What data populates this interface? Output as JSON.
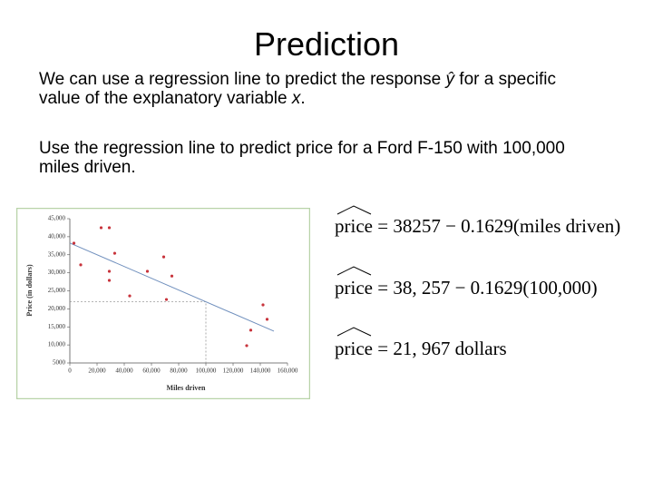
{
  "title": "Prediction",
  "body": [
    [
      "We can use a regression line to predict the response ",
      "ŷ",
      " for a specific value of the explanatory variable ",
      "x",
      "."
    ],
    [
      "Use the regression line to predict price for a Ford F-150 with 100,000 miles driven."
    ]
  ],
  "equations": [
    {
      "lhs": "price",
      "rhs": "= 38257 − 0.1629(miles driven)"
    },
    {
      "lhs": "price",
      "rhs": "= 38, 257 − 0.1629(100,000)"
    },
    {
      "lhs": "price",
      "rhs": "= 21, 967 dollars"
    }
  ],
  "chart_data": {
    "type": "scatter",
    "x_label": "Miles driven",
    "y_label": "Price (in dollars)",
    "x": [
      3000,
      8000,
      23000,
      29000,
      33000,
      29000,
      29000,
      44000,
      57000,
      69000,
      75000,
      71000,
      142000,
      133000,
      145000,
      130000
    ],
    "values": [
      38200,
      32200,
      42500,
      42500,
      35400,
      30400,
      27900,
      23600,
      30400,
      34400,
      29100,
      22600,
      21100,
      14100,
      17100,
      9800
    ],
    "color": "#c8343c",
    "fit_line": {
      "x": [
        0,
        150000
      ],
      "values": [
        38257,
        13822
      ],
      "color": "#6f8fbd"
    },
    "reference_point": {
      "x": 100000,
      "y": 21967
    },
    "xlim": [
      0,
      160000
    ],
    "xticks": [
      0,
      {
        "value": 20000,
        "label": "20,000"
      },
      {
        "value": 40000,
        "label": "40,000"
      },
      {
        "value": 60000,
        "label": "60,000"
      },
      {
        "value": 80000,
        "label": "80,000"
      },
      {
        "value": 100000,
        "label": "100,000"
      },
      {
        "value": 120000,
        "label": "120,000"
      },
      {
        "value": 140000,
        "label": "140,000"
      },
      {
        "value": 160000,
        "label": "160,000"
      }
    ],
    "ylim": [
      5000,
      45000
    ],
    "yticks": [
      5000,
      {
        "value": 10000,
        "label": "10,000"
      },
      {
        "value": 15000,
        "label": "15,000"
      },
      {
        "value": 20000,
        "label": "20,000"
      },
      {
        "value": 25000,
        "label": "25,000"
      },
      {
        "value": 30000,
        "label": "30,000"
      },
      {
        "value": 35000,
        "label": "35,000"
      },
      {
        "value": 40000,
        "label": "40,000"
      },
      {
        "value": 45000,
        "label": "45,000"
      }
    ]
  }
}
